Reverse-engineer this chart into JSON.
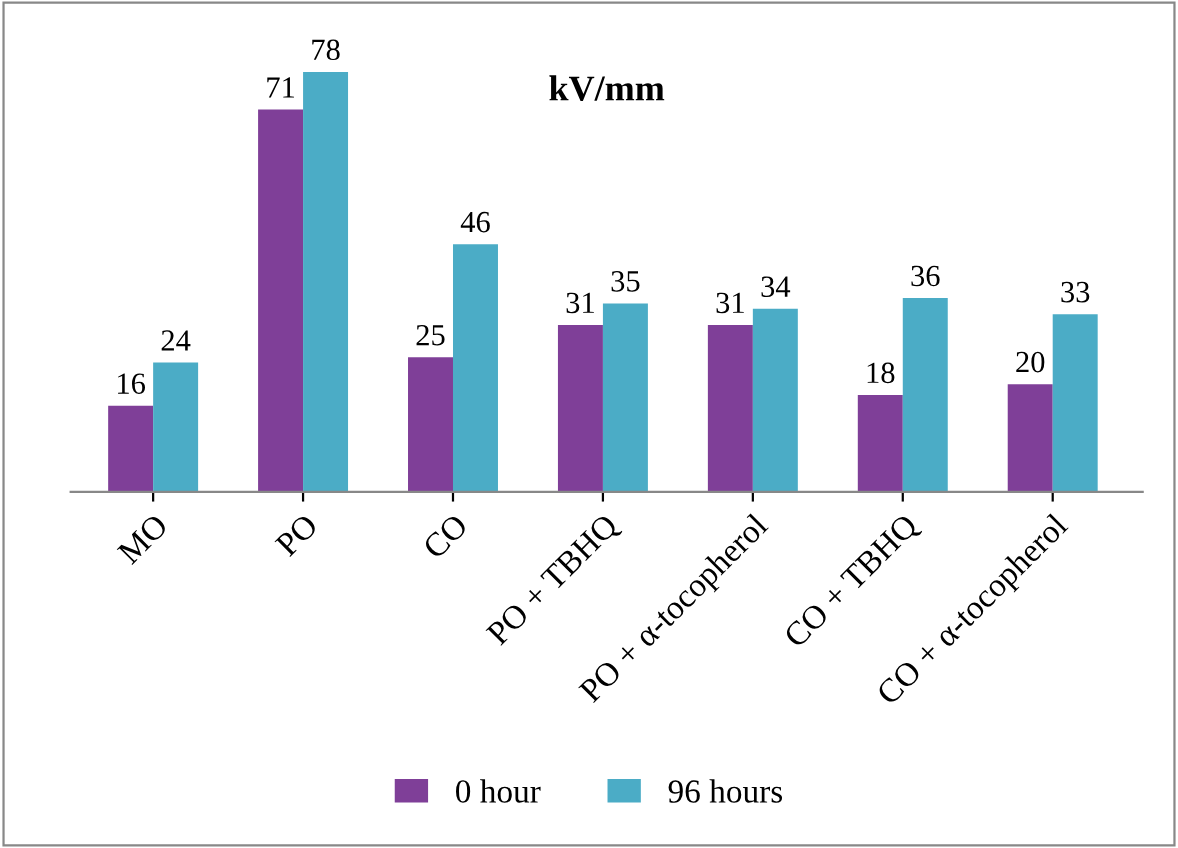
{
  "chart_data": {
    "type": "bar",
    "title": "kV/mm",
    "categories": [
      "MO",
      "PO",
      "CO",
      "PO + TBHQ",
      "PO + α-tocopherol",
      "CO + TBHQ",
      "CO + α-tocopherol"
    ],
    "series": [
      {
        "name": "0 hour",
        "color": "#7f3f98",
        "values": [
          16,
          71,
          25,
          31,
          31,
          18,
          20
        ]
      },
      {
        "name": "96 hours",
        "color": "#4bacc6",
        "values": [
          24,
          78,
          46,
          35,
          34,
          36,
          33
        ]
      }
    ],
    "data_labels": true,
    "legend": "bottom"
  }
}
